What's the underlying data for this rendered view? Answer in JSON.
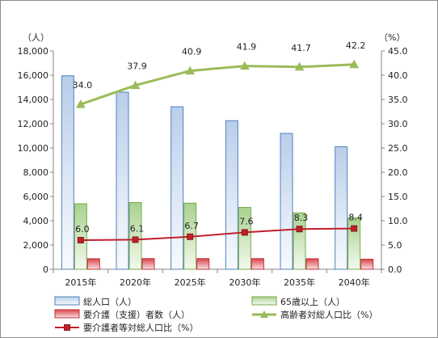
{
  "chart_data": {
    "type": "bar-line-combo",
    "categories": [
      "2015年",
      "2020年",
      "2025年",
      "2030年",
      "2035年",
      "2040年"
    ],
    "y_left": {
      "unit": "（人）",
      "min": 0,
      "max": 18000,
      "step": 2000,
      "ticks": [
        "0",
        "2,000",
        "4,000",
        "6,000",
        "8,000",
        "10,000",
        "12,000",
        "14,000",
        "16,000",
        "18,000"
      ]
    },
    "y_right": {
      "unit": "（%）",
      "min": 0,
      "max": 45,
      "step": 5,
      "ticks": [
        "0.0",
        "5.0",
        "10.0",
        "15.0",
        "20.0",
        "25.0",
        "30.0",
        "35.0",
        "40.0",
        "45.0"
      ]
    },
    "bar_series": [
      {
        "name": "総人口（人）",
        "color": "#4f81bd",
        "values": [
          15950,
          14600,
          13400,
          12250,
          11200,
          10100
        ]
      },
      {
        "name": "65歳以上（人）",
        "color": "#77a84c",
        "values": [
          5400,
          5500,
          5450,
          5100,
          4650,
          4250
        ]
      },
      {
        "name": "要介護（支援）者数（人）",
        "color": "#c0313a",
        "values": [
          870,
          880,
          880,
          880,
          870,
          830
        ]
      }
    ],
    "line_series": [
      {
        "name": "高齢者対総人口比（%）",
        "color": "#9bbb59",
        "marker": "triangle",
        "values": [
          34.0,
          37.9,
          40.9,
          41.9,
          41.7,
          42.2
        ],
        "labels": [
          "34.0",
          "37.9",
          "40.9",
          "41.9",
          "41.7",
          "42.2"
        ]
      },
      {
        "name": "要介護者等対総人口比（%）",
        "color": "#c0202a",
        "marker": "square",
        "values": [
          6.0,
          6.1,
          6.7,
          7.6,
          8.3,
          8.4
        ],
        "labels": [
          "6.0",
          "6.1",
          "6.7",
          "7.6",
          "8.3",
          "8.4"
        ]
      }
    ],
    "grid": false,
    "legend": "bottom"
  }
}
